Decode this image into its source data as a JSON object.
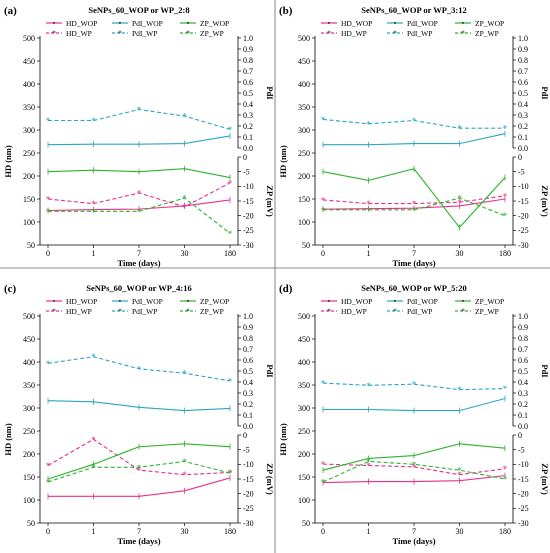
{
  "colors": {
    "HD": "#e8308a",
    "PdI": "#2aa6c2",
    "ZP": "#2db22d"
  },
  "legend_labels": {
    "HD_WOP": "HD_WOP",
    "HD_WP": "HD_WP",
    "PdI_WOP": "PdI_WOP",
    "PdI_WP": "PdI_WP",
    "ZP_WOP": "ZP_WOP",
    "ZP_WP": "ZP_WP"
  },
  "chart_data": [
    {
      "type": "line",
      "panel": "(a)",
      "title": "SeNPs_60_WOP or WP_2:8",
      "x": [
        "0",
        "1",
        "7",
        "30",
        "180"
      ],
      "xlabel": "Time (days)",
      "ylabel_left": "HD (nm)",
      "ylabel_right_top": "PdI",
      "ylabel_right_bottom": "ZP (mV)",
      "ylim_hd": [
        50,
        500
      ],
      "ylim_pdi": [
        0,
        1
      ],
      "ylim_zp": [
        -30,
        0
      ],
      "series": [
        {
          "name": "HD_WOP",
          "axis": "hd",
          "style": "solid",
          "values": [
            125,
            127,
            128,
            135,
            148
          ]
        },
        {
          "name": "HD_WP",
          "axis": "hd",
          "style": "dashed",
          "values": [
            150,
            140,
            163,
            133,
            185
          ]
        },
        {
          "name": "PdI_WOP",
          "axis": "pdi",
          "style": "solid",
          "values": [
            0.03,
            0.035,
            0.035,
            0.04,
            0.11
          ]
        },
        {
          "name": "PdI_WP",
          "axis": "pdi",
          "style": "dashed",
          "values": [
            0.25,
            0.25,
            0.35,
            0.29,
            0.17
          ]
        },
        {
          "name": "ZP_WOP",
          "axis": "zp",
          "style": "solid",
          "values": [
            -5,
            -4.5,
            -5,
            -4,
            -7
          ]
        },
        {
          "name": "ZP_WP",
          "axis": "zp",
          "style": "dashed",
          "values": [
            -18.5,
            -18.5,
            -18.5,
            -14,
            -26
          ]
        }
      ]
    },
    {
      "type": "line",
      "panel": "(b)",
      "title": "SeNPs_60_WOP or WP_3:12",
      "x": [
        "0",
        "1",
        "7",
        "30",
        "180"
      ],
      "xlabel": "Time (days)",
      "ylabel_left": "HD (nm)",
      "ylabel_right_top": "PdI",
      "ylabel_right_bottom": "ZP (mV)",
      "ylim_hd": [
        50,
        500
      ],
      "ylim_pdi": [
        0,
        1
      ],
      "ylim_zp": [
        -30,
        0
      ],
      "series": [
        {
          "name": "HD_WOP",
          "axis": "hd",
          "style": "solid",
          "values": [
            128,
            129,
            130,
            135,
            150
          ]
        },
        {
          "name": "HD_WP",
          "axis": "hd",
          "style": "dashed",
          "values": [
            148,
            140,
            140,
            143,
            157
          ]
        },
        {
          "name": "PdI_WOP",
          "axis": "pdi",
          "style": "solid",
          "values": [
            0.03,
            0.03,
            0.04,
            0.04,
            0.13
          ]
        },
        {
          "name": "PdI_WP",
          "axis": "pdi",
          "style": "dashed",
          "values": [
            0.26,
            0.22,
            0.25,
            0.18,
            0.18
          ]
        },
        {
          "name": "ZP_WOP",
          "axis": "zp",
          "style": "solid",
          "values": [
            -5,
            -8,
            -4,
            -24,
            -7
          ]
        },
        {
          "name": "ZP_WP",
          "axis": "zp",
          "style": "dashed",
          "values": [
            -18,
            -18,
            -18,
            -14,
            -20
          ]
        }
      ]
    },
    {
      "type": "line",
      "panel": "(c)",
      "title": "SeNPs_60_WOP or WP_4:16",
      "x": [
        "0",
        "1",
        "7",
        "30",
        "180"
      ],
      "xlabel": "Time (days)",
      "ylabel_left": "HD (nm)",
      "ylabel_right_top": "PdI",
      "ylabel_right_bottom": "ZP (mV)",
      "ylim_hd": [
        50,
        500
      ],
      "ylim_pdi": [
        0,
        1
      ],
      "ylim_zp": [
        -30,
        0
      ],
      "series": [
        {
          "name": "HD_WOP",
          "axis": "hd",
          "style": "solid",
          "values": [
            108,
            108,
            108,
            120,
            148
          ]
        },
        {
          "name": "HD_WP",
          "axis": "hd",
          "style": "dashed",
          "values": [
            175,
            232,
            165,
            155,
            160
          ]
        },
        {
          "name": "PdI_WOP",
          "axis": "pdi",
          "style": "solid",
          "values": [
            0.23,
            0.22,
            0.17,
            0.14,
            0.16
          ]
        },
        {
          "name": "PdI_WP",
          "axis": "pdi",
          "style": "dashed",
          "values": [
            0.57,
            0.63,
            0.52,
            0.48,
            0.41
          ]
        },
        {
          "name": "ZP_WOP",
          "axis": "zp",
          "style": "solid",
          "values": [
            -15,
            -10,
            -4,
            -3,
            -4
          ]
        },
        {
          "name": "ZP_WP",
          "axis": "zp",
          "style": "dashed",
          "values": [
            -16,
            -11,
            -11,
            -9,
            -13
          ]
        }
      ]
    },
    {
      "type": "line",
      "panel": "(d)",
      "title": "SeNPs_60_WOP or WP_5:20",
      "x": [
        "0",
        "1",
        "7",
        "30",
        "180"
      ],
      "xlabel": "Time (days)",
      "ylabel_left": "HD (nm)",
      "ylabel_right_top": "PdI",
      "ylabel_right_bottom": "ZP (mV)",
      "ylim_hd": [
        50,
        500
      ],
      "ylim_pdi": [
        0,
        1
      ],
      "ylim_zp": [
        -30,
        0
      ],
      "series": [
        {
          "name": "HD_WOP",
          "axis": "hd",
          "style": "solid",
          "values": [
            138,
            140,
            140,
            142,
            153
          ]
        },
        {
          "name": "HD_WP",
          "axis": "hd",
          "style": "dashed",
          "values": [
            178,
            175,
            172,
            155,
            168
          ]
        },
        {
          "name": "PdI_WOP",
          "axis": "pdi",
          "style": "solid",
          "values": [
            0.15,
            0.15,
            0.14,
            0.14,
            0.25
          ]
        },
        {
          "name": "PdI_WP",
          "axis": "pdi",
          "style": "dashed",
          "values": [
            0.39,
            0.37,
            0.38,
            0.33,
            0.34
          ]
        },
        {
          "name": "ZP_WOP",
          "axis": "zp",
          "style": "solid",
          "values": [
            -12,
            -8,
            -7,
            -3,
            -4.5
          ]
        },
        {
          "name": "ZP_WP",
          "axis": "zp",
          "style": "dashed",
          "values": [
            -16,
            -9,
            -10,
            -12,
            -15
          ]
        }
      ]
    }
  ]
}
